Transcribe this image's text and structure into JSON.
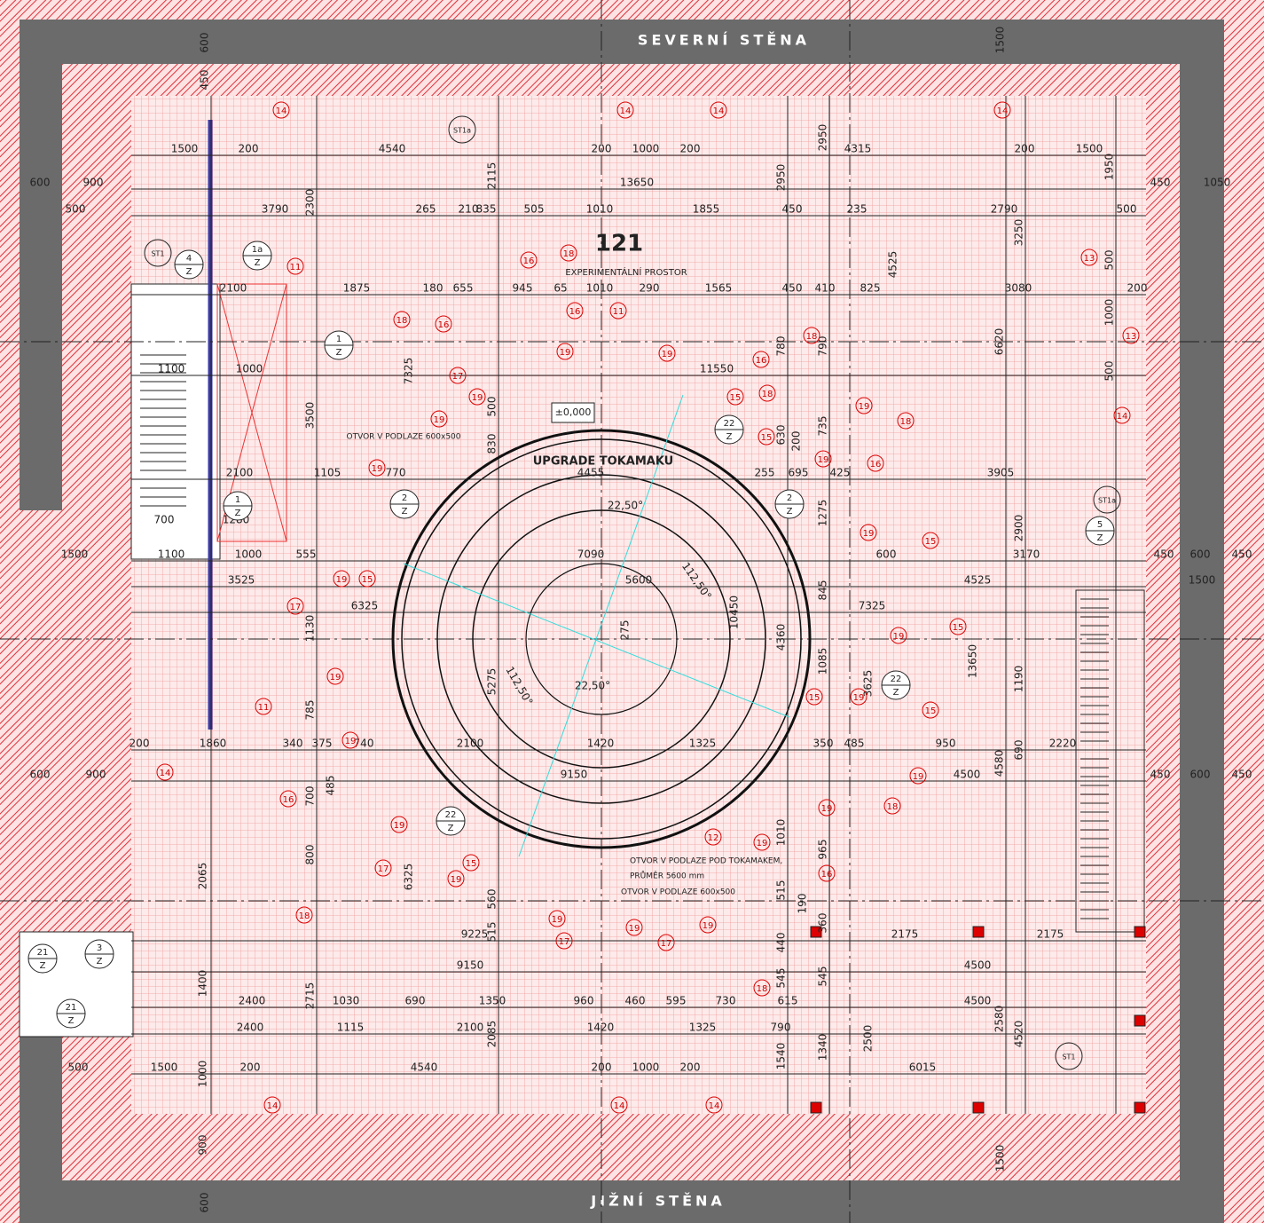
{
  "walls": {
    "north": "SEVERNÍ STĚNA",
    "south": "JIŽNÍ STĚNA"
  },
  "room": {
    "number": "121",
    "name": "EXPERIMENTÁLNÍ PROSTOR",
    "level": "±0,000"
  },
  "notes": [
    "UPGRADE TOKAMAKU",
    "OTVOR V PODLAZE 600x500",
    "OTVOR V PODLAZE POD TOKAMAKEM,",
    "PRŮMĚR 5600 mm",
    "OTVOR V PODLAZE 600x500"
  ],
  "angles": [
    "22,50°",
    "112,50°",
    "22,50°",
    "112,50°"
  ],
  "dimensions": {
    "horizontal": [
      [
        "1500",
        "200",
        "4540",
        "200",
        "1000",
        "200",
        "4315",
        "200",
        "1500"
      ],
      [
        "600",
        "900",
        "13650",
        "450",
        "1050"
      ],
      [
        "500",
        "3790",
        "265",
        "210",
        "835",
        "505",
        "1010",
        "1855",
        "450",
        "235",
        "2790",
        "500"
      ],
      [
        "2100",
        "1875",
        "180",
        "655",
        "945",
        "65",
        "1010",
        "290",
        "1565",
        "450",
        "410",
        "825",
        "3080",
        "200"
      ],
      [
        "1100",
        "1000",
        "11550"
      ],
      [
        "2100",
        "1105",
        "770",
        "4455",
        "255",
        "695",
        "425",
        "3905"
      ],
      [
        "700",
        "1280"
      ],
      [
        "1500",
        "1100",
        "1000",
        "555",
        "7090",
        "600",
        "3170",
        "450",
        "600",
        "450"
      ],
      [
        "3525",
        "5600",
        "4525",
        "1500"
      ],
      [
        "6325",
        "7325"
      ],
      [
        "200",
        "1860",
        "340",
        "375",
        "740",
        "2100",
        "1420",
        "1325",
        "350",
        "485",
        "950",
        "2220"
      ],
      [
        "600",
        "900",
        "9150",
        "4500",
        "450",
        "600",
        "450"
      ],
      [
        "9225",
        "2175",
        "2175"
      ],
      [
        "9150",
        "4500"
      ],
      [
        "2400",
        "1030",
        "690",
        "1350",
        "960",
        "460",
        "595",
        "730",
        "615",
        "4500"
      ],
      [
        "2400",
        "1115",
        "2100",
        "1420",
        "1325",
        "790"
      ],
      [
        "500",
        "1500",
        "200",
        "4540",
        "200",
        "1000",
        "200",
        "6015"
      ]
    ],
    "vertical": [
      "600",
      "450",
      "1500",
      "2950",
      "2950",
      "2115",
      "2300",
      "1950",
      "3250",
      "4525",
      "500",
      "1000",
      "6620",
      "7325",
      "3500",
      "500",
      "780",
      "790",
      "630",
      "200",
      "735",
      "830",
      "500",
      "1275",
      "2900",
      "845",
      "10450",
      "4360",
      "1130",
      "275",
      "5275",
      "1085",
      "13650",
      "1190",
      "3625",
      "785",
      "690",
      "4580",
      "700",
      "485",
      "1010",
      "965",
      "800",
      "2065",
      "6325",
      "560",
      "515",
      "515",
      "190",
      "360",
      "440",
      "1400",
      "2715",
      "545",
      "545",
      "2580",
      "4520",
      "2500",
      "2085",
      "1340",
      "1540",
      "1000",
      "900",
      "600",
      "1500"
    ]
  },
  "markers": [
    "14",
    "14",
    "14",
    "14",
    "ST1a",
    "ST1",
    "11",
    "16",
    "18",
    "13",
    "18",
    "16",
    "16",
    "11",
    "18",
    "13",
    "17",
    "19",
    "19",
    "16",
    "15",
    "18",
    "19",
    "19",
    "18",
    "19",
    "14",
    "15",
    "19",
    "16",
    "19",
    "19",
    "15",
    "19",
    "15",
    "17",
    "19",
    "15",
    "19",
    "11",
    "15",
    "19",
    "15",
    "19",
    "14",
    "16",
    "19",
    "19",
    "18",
    "19",
    "12",
    "19",
    "17",
    "15",
    "19",
    "16",
    "18",
    "19",
    "17",
    "19",
    "17",
    "19",
    "18",
    "14",
    "14",
    "14",
    "ST1",
    "ST1a"
  ],
  "sections": [
    {
      "number": "4",
      "letter": "Z"
    },
    {
      "number": "1a",
      "letter": "Z"
    },
    {
      "number": "1",
      "letter": "Z"
    },
    {
      "number": "2",
      "letter": "Z"
    },
    {
      "number": "22",
      "letter": "Z"
    },
    {
      "number": "1",
      "letter": "Z"
    },
    {
      "number": "2",
      "letter": "Z"
    },
    {
      "number": "22",
      "letter": "Z"
    },
    {
      "number": "5",
      "letter": "Z"
    },
    {
      "number": "22",
      "letter": "Z"
    },
    {
      "number": "3",
      "letter": "Z"
    },
    {
      "number": "21",
      "letter": "Z"
    },
    {
      "number": "21",
      "letter": "Z"
    }
  ]
}
